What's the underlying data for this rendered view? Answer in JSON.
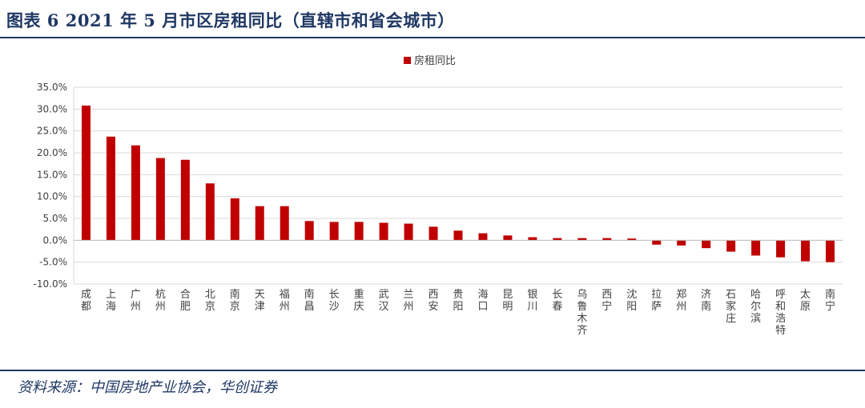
{
  "header": {
    "title": "图表 6   2021 年 5 月市区房租同比（直辖市和省会城市）"
  },
  "footer": {
    "source": "资料来源：中国房地产业协会，华创证券"
  },
  "colors": {
    "bar": "#c00000",
    "rule": "#1f3864",
    "grid": "#d9d9d9"
  },
  "chart_data": {
    "type": "bar",
    "categories": [
      "成都",
      "上海",
      "广州",
      "杭州",
      "合肥",
      "北京",
      "南京",
      "天津",
      "福州",
      "南昌",
      "长沙",
      "重庆",
      "武汉",
      "兰州",
      "西安",
      "贵阳",
      "海口",
      "昆明",
      "银川",
      "长春",
      "乌鲁木齐",
      "西宁",
      "沈阳",
      "拉萨",
      "郑州",
      "济南",
      "石家庄",
      "哈尔滨",
      "呼和浩特",
      "太原",
      "南宁"
    ],
    "series": [
      {
        "name": "房租同比",
        "values": [
          30.8,
          23.7,
          21.7,
          18.8,
          18.4,
          13.0,
          9.6,
          7.8,
          7.8,
          4.4,
          4.2,
          4.2,
          4.0,
          3.8,
          3.1,
          2.2,
          1.6,
          1.1,
          0.7,
          0.5,
          0.5,
          0.5,
          0.4,
          -1.0,
          -1.2,
          -1.8,
          -2.6,
          -3.5,
          -3.9,
          -4.8,
          -5.0
        ]
      }
    ],
    "yticks": [
      "35.0%",
      "30.0%",
      "25.0%",
      "20.0%",
      "15.0%",
      "10.0%",
      "5.0%",
      "0.0%",
      "-5.0%",
      "-10.0%"
    ],
    "ylim": [
      -10,
      35
    ],
    "legend": "top-center",
    "grid": true
  }
}
